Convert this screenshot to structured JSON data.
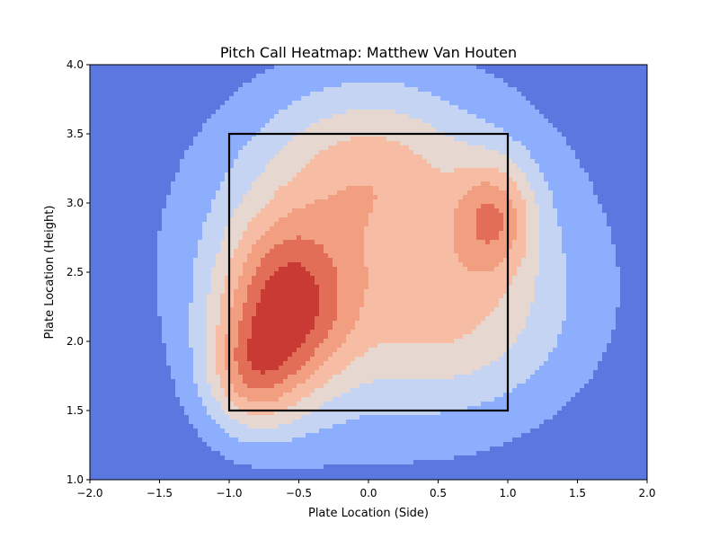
{
  "chart_data": {
    "type": "heatmap",
    "subtype": "filled-contour density",
    "title": "Pitch Call Heatmap: Matthew Van Houten",
    "xlabel": "Plate Location (Side)",
    "ylabel": "Plate Location (Height)",
    "xlim": [
      -2.0,
      2.0
    ],
    "ylim": [
      1.0,
      4.0
    ],
    "xticks": [
      -2.0,
      -1.5,
      -1.0,
      -0.5,
      0.0,
      0.5,
      1.0,
      1.5,
      2.0
    ],
    "yticks": [
      1.0,
      1.5,
      2.0,
      2.5,
      3.0,
      3.5,
      4.0
    ],
    "xtick_labels": [
      "−2.0",
      "−1.5",
      "−1.0",
      "−0.5",
      "0.0",
      "0.5",
      "1.0",
      "1.5",
      "2.0"
    ],
    "ytick_labels": [
      "1.0",
      "1.5",
      "2.0",
      "2.5",
      "3.0",
      "3.5",
      "4.0"
    ],
    "colormap": "coolwarm",
    "contour_level_colors": [
      "#5a78e0",
      "#8caefc",
      "#c4d4f2",
      "#e6d8d0",
      "#f6bca4",
      "#f29e80",
      "#e36e58",
      "#c93a35"
    ],
    "density_peaks": [
      {
        "x": -0.6,
        "y": 2.25,
        "sx": 0.32,
        "sy": 0.45,
        "w": 1.0
      },
      {
        "x": -0.85,
        "y": 1.75,
        "sx": 0.22,
        "sy": 0.28,
        "w": 0.55
      },
      {
        "x": 0.9,
        "y": 2.9,
        "sx": 0.2,
        "sy": 0.28,
        "w": 0.62
      },
      {
        "x": 0.0,
        "y": 3.25,
        "sx": 0.5,
        "sy": 0.4,
        "w": 0.42
      },
      {
        "x": 0.6,
        "y": 2.2,
        "sx": 0.55,
        "sy": 0.45,
        "w": 0.35
      },
      {
        "x": 0.1,
        "y": 2.6,
        "sx": 1.0,
        "sy": 0.9,
        "w": 0.45
      }
    ],
    "strike_zone": {
      "x0": -1.0,
      "x1": 1.0,
      "y0": 1.5,
      "y1": 3.5,
      "color": "#000000"
    },
    "grid": false,
    "legend": "none"
  }
}
